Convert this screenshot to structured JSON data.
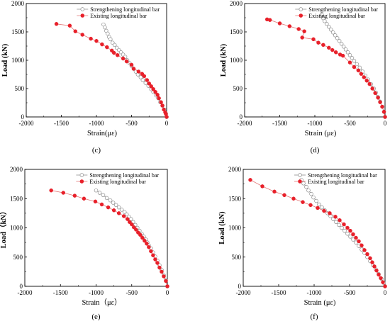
{
  "colors": {
    "strengthening": "#8c8c8c",
    "existing": "#e8202a",
    "existing_line": "#e27575",
    "axis": "#000000"
  },
  "chart_data": [
    {
      "type": "line",
      "panel_label": "(c)",
      "xlabel": "Strain(με)",
      "ylabel": "Load (kN)",
      "xlim": [
        -2000,
        0
      ],
      "ylim": [
        0,
        2000
      ],
      "x_ticks": [
        -2000,
        -1500,
        -1000,
        -500,
        0
      ],
      "y_ticks": [
        0,
        500,
        1000,
        1500,
        2000
      ],
      "legend_position": "top-right",
      "series": [
        {
          "name": "Strengthening longitudinal bar",
          "marker": "open-circle",
          "points": [
            [
              -900,
              1630
            ],
            [
              -880,
              1580
            ],
            [
              -860,
              1520
            ],
            [
              -840,
              1470
            ],
            [
              -820,
              1410
            ],
            [
              -800,
              1370
            ],
            [
              -770,
              1310
            ],
            [
              -740,
              1270
            ],
            [
              -710,
              1220
            ],
            [
              -680,
              1180
            ],
            [
              -650,
              1140
            ],
            [
              -620,
              1100
            ],
            [
              -590,
              1060
            ],
            [
              -560,
              1000
            ],
            [
              -530,
              950
            ],
            [
              -500,
              900
            ],
            [
              -470,
              850
            ],
            [
              -440,
              800
            ],
            [
              -410,
              750
            ],
            [
              -370,
              700
            ],
            [
              -340,
              650
            ],
            [
              -300,
              600
            ],
            [
              -260,
              550
            ],
            [
              -220,
              490
            ],
            [
              -190,
              440
            ],
            [
              -150,
              380
            ],
            [
              -120,
              330
            ],
            [
              -90,
              260
            ],
            [
              -60,
              200
            ],
            [
              -30,
              130
            ],
            [
              -10,
              60
            ],
            [
              0,
              0
            ]
          ]
        },
        {
          "name": "Existing longitudinal bar",
          "marker": "filled-circle",
          "points": [
            [
              -1570,
              1640
            ],
            [
              -1380,
              1610
            ],
            [
              -1300,
              1510
            ],
            [
              -1200,
              1450
            ],
            [
              -1080,
              1380
            ],
            [
              -1000,
              1340
            ],
            [
              -920,
              1280
            ],
            [
              -850,
              1230
            ],
            [
              -780,
              1170
            ],
            [
              -750,
              1130
            ],
            [
              -700,
              1090
            ],
            [
              -620,
              1030
            ],
            [
              -570,
              980
            ],
            [
              -500,
              920
            ],
            [
              -470,
              850
            ],
            [
              -400,
              800
            ],
            [
              -350,
              760
            ],
            [
              -320,
              720
            ],
            [
              -280,
              650
            ],
            [
              -250,
              590
            ],
            [
              -220,
              540
            ],
            [
              -190,
              490
            ],
            [
              -160,
              440
            ],
            [
              -130,
              390
            ],
            [
              -110,
              330
            ],
            [
              -80,
              260
            ],
            [
              -60,
              200
            ],
            [
              -40,
              130
            ],
            [
              -20,
              80
            ],
            [
              -10,
              50
            ],
            [
              0,
              0
            ]
          ]
        }
      ]
    },
    {
      "type": "line",
      "panel_label": "(d)",
      "xlabel": "Strain (με)",
      "ylabel": "Load (kN)",
      "xlim": [
        -2000,
        0
      ],
      "ylim": [
        0,
        2000
      ],
      "x_ticks": [
        -2000,
        -1500,
        -1000,
        -500,
        0
      ],
      "y_ticks": [
        0,
        500,
        1000,
        1500,
        2000
      ],
      "legend_position": "top-right",
      "series": [
        {
          "name": "Strengthening longitudinal bar",
          "marker": "open-circle",
          "points": [
            [
              -900,
              1800
            ],
            [
              -880,
              1740
            ],
            [
              -860,
              1690
            ],
            [
              -830,
              1640
            ],
            [
              -800,
              1590
            ],
            [
              -770,
              1540
            ],
            [
              -740,
              1490
            ],
            [
              -710,
              1440
            ],
            [
              -680,
              1390
            ],
            [
              -650,
              1340
            ],
            [
              -620,
              1290
            ],
            [
              -590,
              1240
            ],
            [
              -560,
              1190
            ],
            [
              -530,
              1140
            ],
            [
              -500,
              1090
            ],
            [
              -470,
              1040
            ],
            [
              -440,
              990
            ],
            [
              -400,
              930
            ],
            [
              -360,
              870
            ],
            [
              -320,
              800
            ],
            [
              -280,
              730
            ],
            [
              -240,
              660
            ],
            [
              -200,
              580
            ],
            [
              -160,
              500
            ],
            [
              -130,
              430
            ],
            [
              -100,
              350
            ],
            [
              -70,
              270
            ],
            [
              -40,
              180
            ],
            [
              -15,
              90
            ],
            [
              0,
              0
            ]
          ]
        },
        {
          "name": "Existing longitudinal bar",
          "marker": "filled-circle",
          "points": [
            [
              -1680,
              1720
            ],
            [
              -1640,
              1710
            ],
            [
              -1500,
              1650
            ],
            [
              -1360,
              1600
            ],
            [
              -1230,
              1550
            ],
            [
              -1150,
              1510
            ],
            [
              -1180,
              1400
            ],
            [
              -1020,
              1370
            ],
            [
              -950,
              1310
            ],
            [
              -880,
              1270
            ],
            [
              -800,
              1220
            ],
            [
              -750,
              1180
            ],
            [
              -700,
              1140
            ],
            [
              -640,
              1100
            ],
            [
              -600,
              1080
            ],
            [
              -500,
              960
            ],
            [
              -440,
              880
            ],
            [
              -380,
              820
            ],
            [
              -340,
              760
            ],
            [
              -300,
              700
            ],
            [
              -260,
              640
            ],
            [
              -220,
              580
            ],
            [
              -180,
              500
            ],
            [
              -140,
              420
            ],
            [
              -100,
              340
            ],
            [
              -70,
              260
            ],
            [
              -40,
              180
            ],
            [
              -15,
              90
            ],
            [
              0,
              0
            ]
          ]
        }
      ]
    },
    {
      "type": "line",
      "panel_label": "(e)",
      "xlabel": "Strain（με）",
      "ylabel": "Load（kN）",
      "xlim": [
        -2000,
        0
      ],
      "ylim": [
        0,
        2000
      ],
      "x_ticks": [
        -2000,
        -1500,
        -1000,
        -500,
        0
      ],
      "y_ticks": [
        0,
        500,
        1000,
        1500,
        2000
      ],
      "legend_position": "top-right",
      "series": [
        {
          "name": "Strengthening longitudinal bar",
          "marker": "open-circle",
          "points": [
            [
              -1000,
              1640
            ],
            [
              -950,
              1600
            ],
            [
              -900,
              1560
            ],
            [
              -850,
              1510
            ],
            [
              -800,
              1470
            ],
            [
              -760,
              1430
            ],
            [
              -720,
              1390
            ],
            [
              -680,
              1350
            ],
            [
              -640,
              1310
            ],
            [
              -600,
              1270
            ],
            [
              -570,
              1230
            ],
            [
              -540,
              1190
            ],
            [
              -510,
              1150
            ],
            [
              -480,
              1100
            ],
            [
              -450,
              1050
            ],
            [
              -420,
              1000
            ],
            [
              -390,
              950
            ],
            [
              -360,
              900
            ],
            [
              -330,
              850
            ],
            [
              -300,
              800
            ],
            [
              -280,
              750
            ],
            [
              -260,
              700
            ],
            [
              -230,
              650
            ],
            [
              -200,
              580
            ],
            [
              -170,
              510
            ],
            [
              -140,
              440
            ],
            [
              -110,
              360
            ],
            [
              -80,
              280
            ],
            [
              -50,
              190
            ],
            [
              -20,
              100
            ],
            [
              0,
              0
            ]
          ]
        },
        {
          "name": "Existing longitudinal bar",
          "marker": "filled-circle",
          "points": [
            [
              -1630,
              1640
            ],
            [
              -1460,
              1600
            ],
            [
              -1300,
              1550
            ],
            [
              -1170,
              1500
            ],
            [
              -1010,
              1450
            ],
            [
              -920,
              1400
            ],
            [
              -830,
              1350
            ],
            [
              -750,
              1300
            ],
            [
              -680,
              1250
            ],
            [
              -610,
              1200
            ],
            [
              -560,
              1150
            ],
            [
              -530,
              1100
            ],
            [
              -500,
              1060
            ],
            [
              -470,
              1010
            ],
            [
              -440,
              970
            ],
            [
              -410,
              920
            ],
            [
              -380,
              880
            ],
            [
              -350,
              830
            ],
            [
              -320,
              780
            ],
            [
              -290,
              730
            ],
            [
              -260,
              670
            ],
            [
              -230,
              600
            ],
            [
              -200,
              530
            ],
            [
              -170,
              460
            ],
            [
              -140,
              400
            ],
            [
              -110,
              320
            ],
            [
              -80,
              250
            ],
            [
              -50,
              170
            ],
            [
              -20,
              90
            ],
            [
              0,
              0
            ]
          ]
        }
      ]
    },
    {
      "type": "line",
      "panel_label": "(f)",
      "xlabel": "Strain (με)",
      "ylabel": "Load (kN)",
      "xlim": [
        -2000,
        0
      ],
      "ylim": [
        0,
        2000
      ],
      "x_ticks": [
        -2000,
        -1500,
        -1000,
        -500,
        0
      ],
      "y_ticks": [
        0,
        500,
        1000,
        1500,
        2000
      ],
      "legend_position": "top-right",
      "series": [
        {
          "name": "Strengthening longitudinal bar",
          "marker": "open-circle",
          "points": [
            [
              -1180,
              1820
            ],
            [
              -1150,
              1760
            ],
            [
              -1110,
              1700
            ],
            [
              -1080,
              1640
            ],
            [
              -1040,
              1580
            ],
            [
              -1010,
              1520
            ],
            [
              -970,
              1460
            ],
            [
              -930,
              1400
            ],
            [
              -890,
              1350
            ],
            [
              -850,
              1300
            ],
            [
              -810,
              1250
            ],
            [
              -770,
              1200
            ],
            [
              -730,
              1150
            ],
            [
              -690,
              1100
            ],
            [
              -650,
              1050
            ],
            [
              -610,
              1000
            ],
            [
              -570,
              950
            ],
            [
              -530,
              900
            ],
            [
              -490,
              850
            ],
            [
              -450,
              800
            ],
            [
              -410,
              750
            ],
            [
              -370,
              690
            ],
            [
              -330,
              630
            ],
            [
              -290,
              570
            ],
            [
              -250,
              500
            ],
            [
              -210,
              430
            ],
            [
              -170,
              360
            ],
            [
              -130,
              290
            ],
            [
              -90,
              210
            ],
            [
              -50,
              130
            ],
            [
              -20,
              60
            ],
            [
              0,
              0
            ]
          ]
        },
        {
          "name": "Existing longitudinal bar",
          "marker": "filled-circle",
          "points": [
            [
              -1900,
              1820
            ],
            [
              -1730,
              1710
            ],
            [
              -1560,
              1620
            ],
            [
              -1420,
              1560
            ],
            [
              -1290,
              1500
            ],
            [
              -1160,
              1440
            ],
            [
              -1050,
              1390
            ],
            [
              -950,
              1340
            ],
            [
              -860,
              1290
            ],
            [
              -780,
              1250
            ],
            [
              -700,
              1190
            ],
            [
              -640,
              1130
            ],
            [
              -580,
              1060
            ],
            [
              -530,
              1000
            ],
            [
              -490,
              950
            ],
            [
              -450,
              890
            ],
            [
              -410,
              830
            ],
            [
              -370,
              770
            ],
            [
              -330,
              700
            ],
            [
              -290,
              620
            ],
            [
              -250,
              550
            ],
            [
              -210,
              480
            ],
            [
              -180,
              410
            ],
            [
              -150,
              340
            ],
            [
              -120,
              270
            ],
            [
              -90,
              200
            ],
            [
              -60,
              140
            ],
            [
              -30,
              70
            ],
            [
              0,
              0
            ]
          ]
        }
      ]
    }
  ]
}
